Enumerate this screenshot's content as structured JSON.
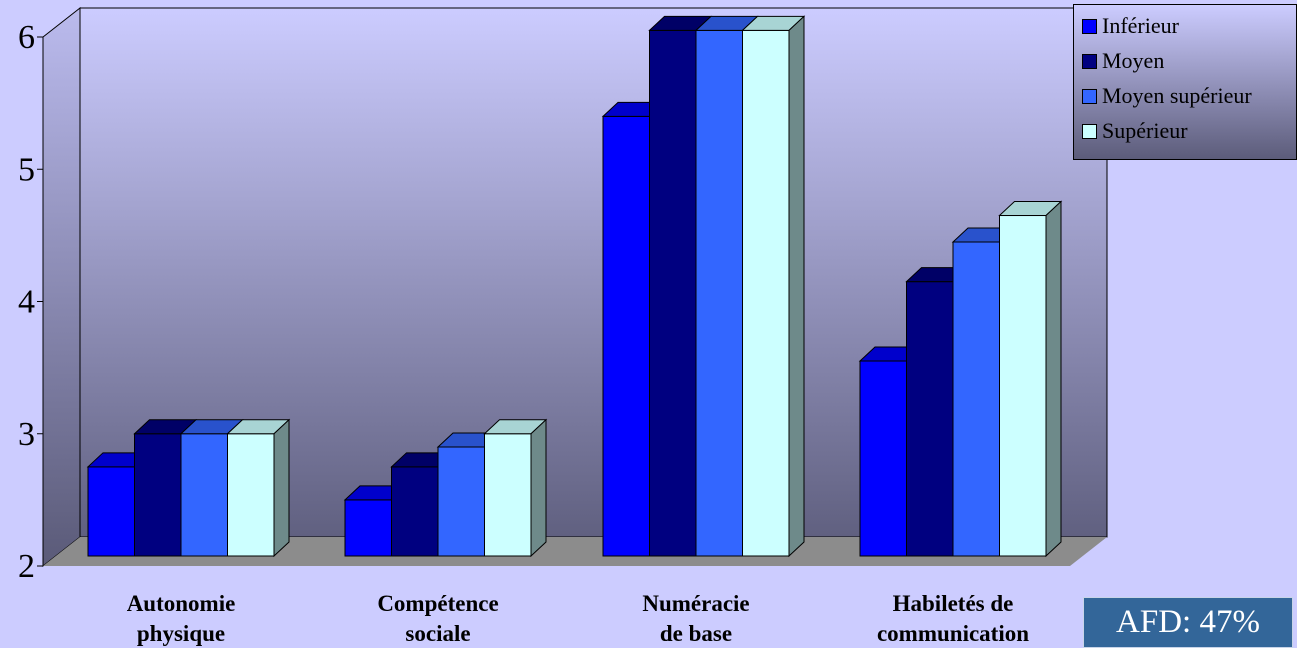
{
  "chart_data": {
    "type": "bar",
    "title": "",
    "xlabel": "",
    "ylabel": "",
    "ylim": [
      2,
      6
    ],
    "yticks": [
      "2",
      "3",
      "4",
      "5",
      "6"
    ],
    "categories": [
      [
        "Autonomie",
        "physique"
      ],
      [
        "Compétence",
        "sociale"
      ],
      [
        "Numéracie",
        "de base"
      ],
      [
        "Habiletés de",
        "communication"
      ]
    ],
    "series": [
      {
        "name": "Inférieur",
        "values": [
          2.75,
          2.5,
          5.4,
          3.55
        ],
        "color": "#0000ff"
      },
      {
        "name": "Moyen",
        "values": [
          3.0,
          2.75,
          6.05,
          4.15
        ],
        "color": "#000080"
      },
      {
        "name": "Moyen supérieur",
        "values": [
          3.0,
          2.9,
          6.05,
          4.45
        ],
        "color": "#3366ff"
      },
      {
        "name": "Supérieur",
        "values": [
          3.0,
          3.0,
          6.05,
          4.65
        ],
        "color": "#ccffff"
      }
    ],
    "legend_position": "top-right",
    "grid": false,
    "annotation": "AFD: 47%"
  }
}
